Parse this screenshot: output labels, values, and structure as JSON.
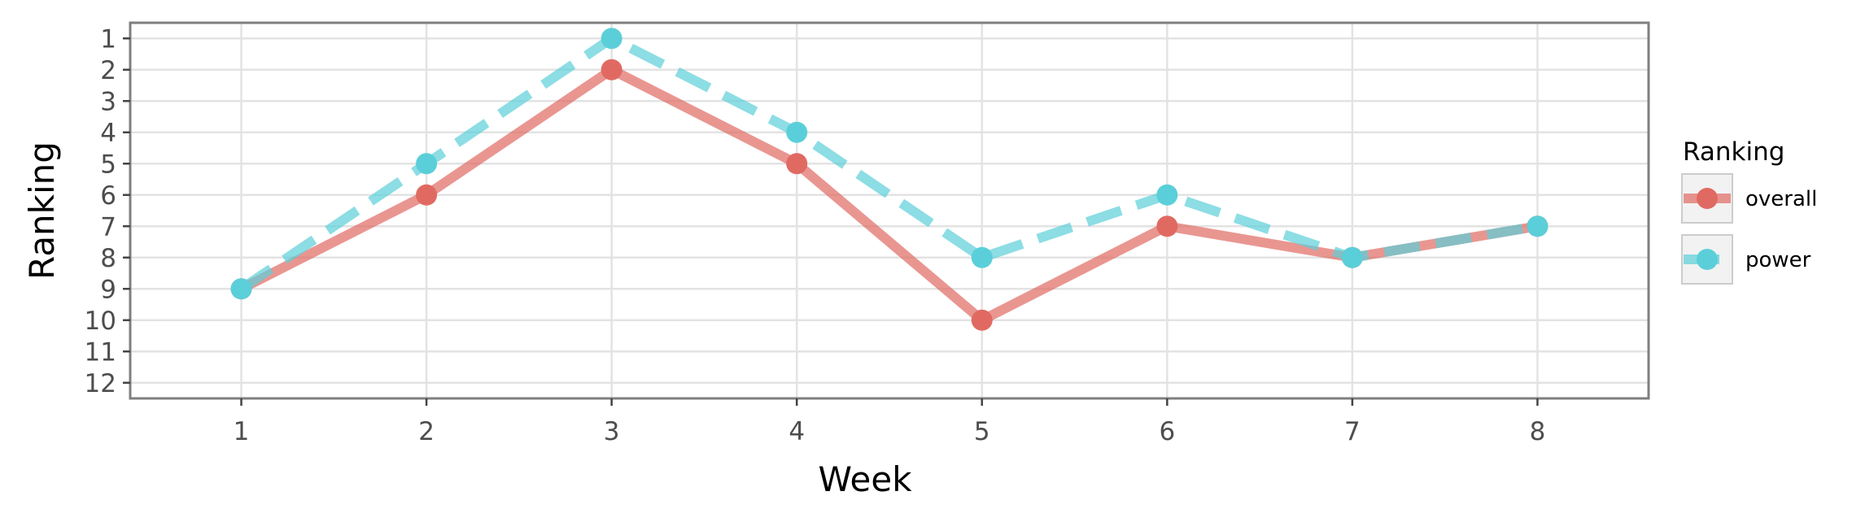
{
  "chart_data": {
    "type": "line",
    "xlabel": "Week",
    "ylabel": "Ranking",
    "x": [
      1,
      2,
      3,
      4,
      5,
      6,
      7,
      8
    ],
    "xlim": [
      0.4,
      8.6
    ],
    "ylim": [
      12.5,
      0.5
    ],
    "y_reversed": true,
    "y_ticks": [
      1,
      2,
      3,
      4,
      5,
      6,
      7,
      8,
      9,
      10,
      11,
      12
    ],
    "grid": true,
    "legend": {
      "title": "Ranking",
      "position": "right"
    },
    "series": [
      {
        "name": "overall",
        "values": [
          9,
          6,
          2,
          5,
          10,
          7,
          8,
          7
        ],
        "color": "#e06a62",
        "line_style": "solid"
      },
      {
        "name": "power",
        "values": [
          9,
          5,
          1,
          4,
          8,
          6,
          8,
          7
        ],
        "color": "#5bcfd9",
        "line_style": "dashed"
      }
    ]
  }
}
